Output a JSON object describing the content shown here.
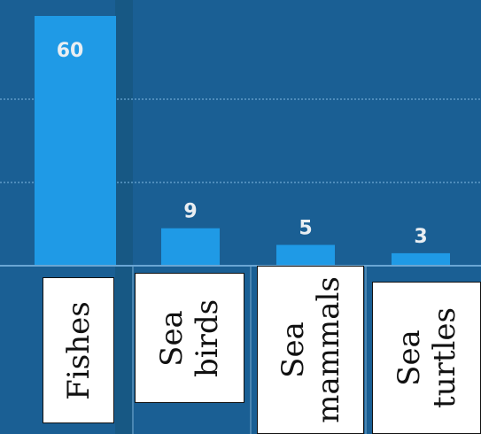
{
  "chart_data": {
    "type": "bar",
    "categories": [
      "Fishes",
      "Sea birds",
      "Sea mammals",
      "Sea turtles"
    ],
    "category_labels": [
      "Fishes",
      "Sea\nbirds",
      "Sea\nmammals",
      "Sea\nturtles"
    ],
    "values": [
      60,
      9,
      5,
      3
    ],
    "value_labels": [
      "60",
      "9",
      "5",
      "3"
    ],
    "title": "",
    "xlabel": "",
    "ylabel": "",
    "ylim": [
      0,
      60
    ],
    "grid": true,
    "legend": "none"
  },
  "colors": {
    "background": "#1a5f94",
    "bar": "#1f9ae6",
    "grid": "#5f9cc8",
    "value_text": "#e9eef2",
    "label_box": "#ffffff",
    "label_text": "#111111"
  }
}
